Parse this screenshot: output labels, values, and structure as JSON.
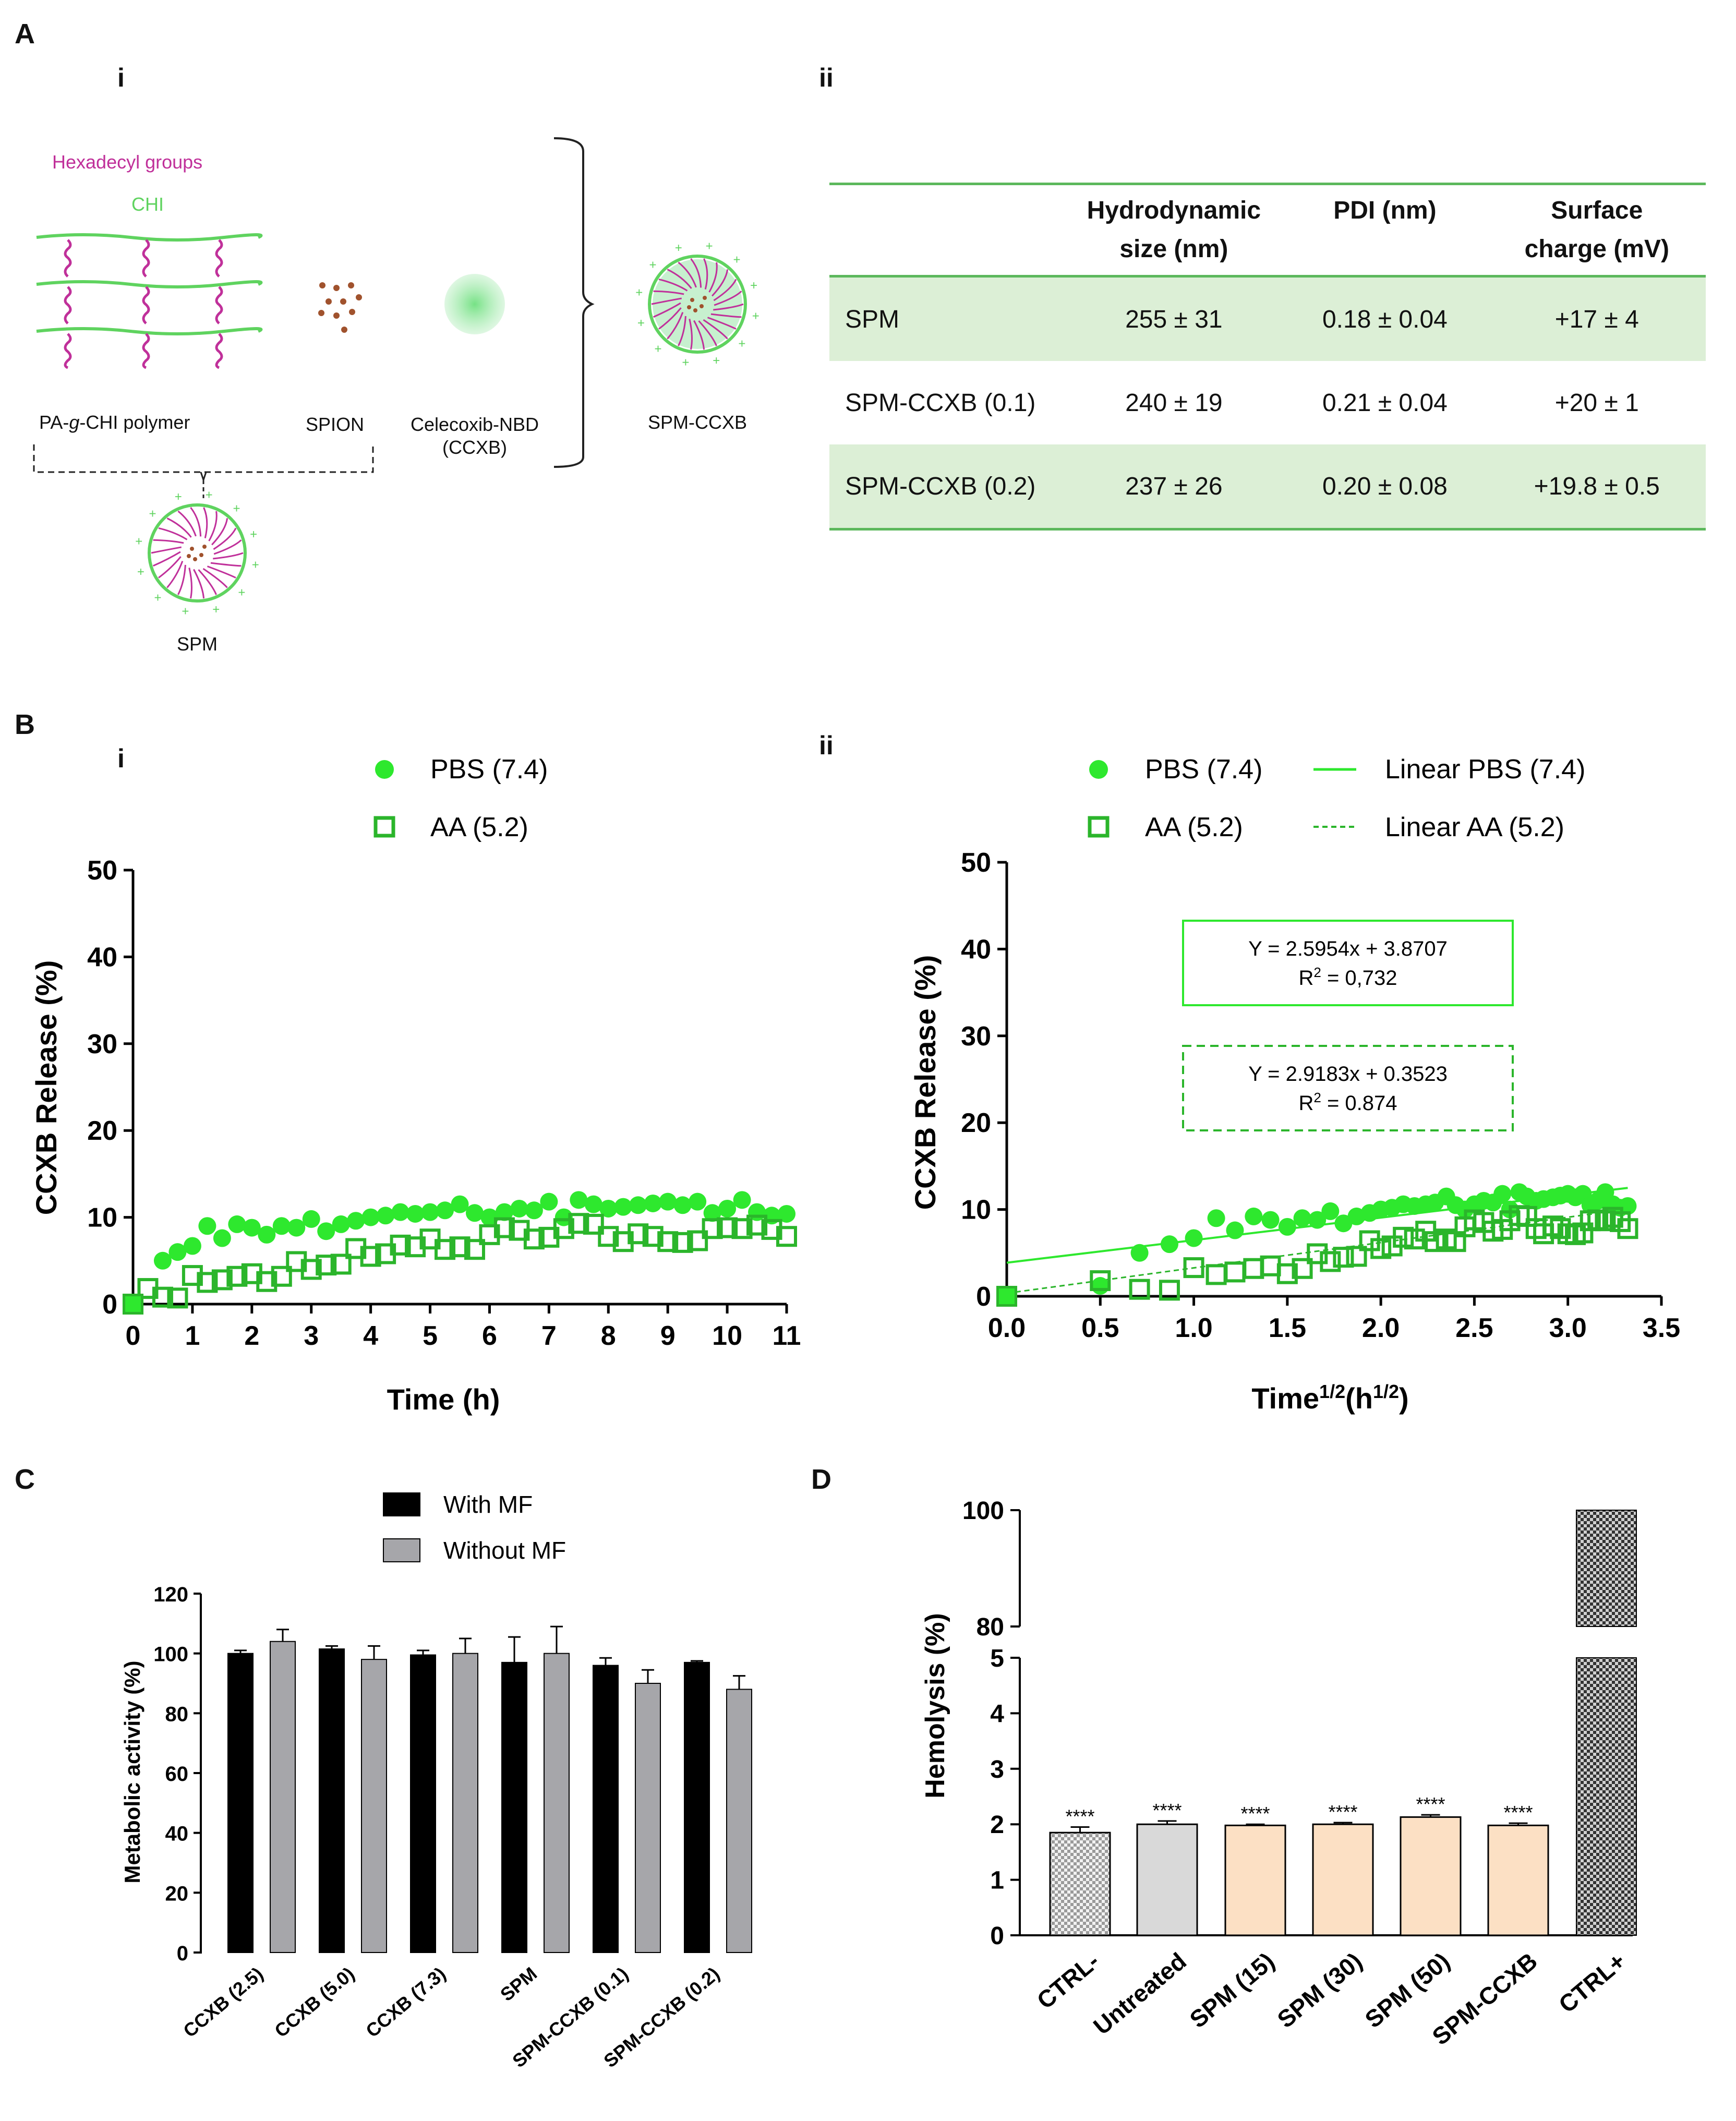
{
  "panels": {
    "A": "A",
    "B": "B",
    "C": "C",
    "D": "D"
  },
  "sub": {
    "i": "i",
    "ii": "ii"
  },
  "schematic": {
    "hexadecyl_label": "Hexadecyl groups",
    "chi_label": "CHI",
    "polymer_label_pre": "PA-",
    "polymer_label_g": "g",
    "polymer_label_post": "-CHI polymer",
    "spion_label": "SPION",
    "ccxb_label_line1": "Celecoxib-NBD",
    "ccxb_label_line2": "(CCXB)",
    "spm_ccxb_label": "SPM-CCXB",
    "spm_label": "SPM",
    "colors": {
      "chi": "#5fd35f",
      "hexadecyl": "#c0309a",
      "spion": "#a0522d",
      "drug": "#7fe08f"
    }
  },
  "table": {
    "headers": [
      "",
      "Hydrodynamic size (nm)",
      "PDI (nm)",
      "Surface charge (mV)"
    ],
    "header_lines": [
      [
        "",
        ""
      ],
      [
        "Hydrodynamic",
        "size (nm)"
      ],
      [
        "PDI (nm)",
        ""
      ],
      [
        "Surface",
        "charge (mV)"
      ]
    ],
    "rows": [
      [
        "SPM",
        "255 ± 31",
        "0.18 ± 0.04",
        "+17 ± 4"
      ],
      [
        "SPM-CCXB (0.1)",
        "240 ± 19",
        "0.21 ± 0.04",
        "+20 ± 1"
      ],
      [
        "SPM-CCXB (0.2)",
        "237 ± 26",
        "0.20 ± 0.08",
        "+19.8 ± 0.5"
      ]
    ],
    "colors": {
      "rule": "#5cb85c",
      "shade": "#dcefd6"
    }
  },
  "chart_data": [
    {
      "id": "Bi",
      "type": "scatter",
      "xlabel": "Time (h)",
      "ylabel": "CCXB Release (%)",
      "xlim": [
        0,
        11
      ],
      "ylim": [
        0,
        50
      ],
      "xticks": [
        0,
        1,
        2,
        3,
        4,
        5,
        6,
        7,
        8,
        9,
        10,
        11
      ],
      "yticks": [
        0,
        10,
        20,
        30,
        40,
        50
      ],
      "series": [
        {
          "name": "PBS (7.4)",
          "marker": "filled-circle",
          "color": "#2ee82e",
          "x": [
            0,
            0.5,
            0.75,
            1,
            1.25,
            1.5,
            1.75,
            2,
            2.25,
            2.5,
            2.75,
            3,
            3.25,
            3.5,
            3.75,
            4,
            4.25,
            4.5,
            4.75,
            5,
            5.25,
            5.5,
            5.75,
            6,
            6.25,
            6.5,
            6.75,
            7,
            7.25,
            7.5,
            7.75,
            8,
            8.25,
            8.5,
            8.75,
            9,
            9.25,
            9.5,
            9.75,
            10,
            10.25,
            10.5,
            10.75,
            11
          ],
          "y": [
            0,
            5,
            6,
            6.7,
            9,
            7.6,
            9.2,
            8.8,
            8,
            9,
            8.8,
            9.8,
            8.4,
            9.2,
            9.6,
            10,
            10.2,
            10.6,
            10.4,
            10.6,
            10.8,
            11.5,
            10.5,
            10,
            10.6,
            11,
            10.8,
            11.8,
            10,
            12,
            11.5,
            11,
            11.2,
            11.4,
            11.6,
            11.8,
            11.4,
            11.8,
            10.5,
            11,
            12,
            10.6,
            10.2,
            10.4
          ]
        },
        {
          "name": "AA (5.2)",
          "marker": "open-square",
          "color": "#2bb52b",
          "x": [
            0,
            0.25,
            0.5,
            0.75,
            1,
            1.25,
            1.5,
            1.75,
            2,
            2.25,
            2.5,
            2.75,
            3,
            3.25,
            3.5,
            3.75,
            4,
            4.25,
            4.5,
            4.75,
            5,
            5.25,
            5.5,
            5.75,
            6,
            6.25,
            6.5,
            6.75,
            7,
            7.25,
            7.5,
            7.75,
            8,
            8.25,
            8.5,
            8.75,
            9,
            9.25,
            9.5,
            9.75,
            10,
            10.25,
            10.5,
            10.75,
            11
          ],
          "y": [
            0,
            1.8,
            0.8,
            0.7,
            3.3,
            2.5,
            2.8,
            3.2,
            3.5,
            2.6,
            3.2,
            4.9,
            4,
            4.5,
            4.6,
            6.4,
            5.5,
            5.8,
            6.8,
            6.6,
            7.5,
            6.3,
            6.6,
            6.3,
            8,
            8.8,
            8.5,
            7.5,
            7.7,
            8.7,
            9.3,
            9.2,
            7.8,
            7.2,
            8.1,
            7.8,
            7.2,
            7.1,
            7.3,
            8.7,
            8.8,
            8.7,
            9.1,
            8.6,
            7.8
          ]
        }
      ]
    },
    {
      "id": "Bii",
      "type": "scatter",
      "xlabel_main": "Time",
      "xlabel_sup1": "1/2",
      "xlabel_mid": "(h",
      "xlabel_sup2": "1/2",
      "xlabel_end": ")",
      "ylabel": "CCXB Release (%)",
      "xlim": [
        0,
        3.5
      ],
      "ylim": [
        0,
        50
      ],
      "xticks": [
        "0.0",
        "0.5",
        "1.0",
        "1.5",
        "2.0",
        "2.5",
        "3.0",
        "3.5"
      ],
      "yticks": [
        0,
        10,
        20,
        30,
        40,
        50
      ],
      "series": [
        {
          "name": "PBS (7.4)",
          "marker": "filled-circle",
          "color": "#2ee82e",
          "fit_label": "Linear PBS (7.4)",
          "fit": {
            "slope": 2.5954,
            "intercept": 3.8707
          },
          "equation": "Y = 2.5954x + 3.8707",
          "r2_prefix": "R",
          "r2_exp": "2",
          "r2_value": " = 0,732",
          "x": [
            0,
            0.5,
            0.71,
            0.87,
            1,
            1.12,
            1.22,
            1.32,
            1.41,
            1.5,
            1.58,
            1.66,
            1.73,
            1.8,
            1.87,
            1.94,
            2,
            2.06,
            2.12,
            2.18,
            2.24,
            2.29,
            2.35,
            2.4,
            2.45,
            2.5,
            2.55,
            2.6,
            2.65,
            2.69,
            2.74,
            2.78,
            2.83,
            2.87,
            2.92,
            2.96,
            3,
            3.04,
            3.08,
            3.12,
            3.16,
            3.2,
            3.24,
            3.28,
            3.32
          ],
          "y": [
            0,
            1.2,
            5,
            6,
            6.7,
            9,
            7.6,
            9.2,
            8.8,
            8,
            9,
            8.8,
            9.8,
            8.4,
            9.2,
            9.6,
            10,
            10.2,
            10.6,
            10.4,
            10.6,
            10.8,
            11.5,
            10.5,
            10,
            10.6,
            11,
            10.8,
            11.8,
            10,
            12,
            11.5,
            11,
            11.2,
            11.4,
            11.6,
            11.8,
            11.4,
            11.8,
            10.5,
            11,
            12,
            10.6,
            10.2,
            10.4
          ]
        },
        {
          "name": "AA (5.2)",
          "marker": "open-square",
          "color": "#2bb52b",
          "fit_label": "Linear AA (5.2)",
          "fit": {
            "slope": 2.9183,
            "intercept": 0.3523
          },
          "equation": "Y = 2.9183x + 0.3523",
          "r2_prefix": "R",
          "r2_exp": "2",
          "r2_value": " = 0.874",
          "x": [
            0,
            0.5,
            0.71,
            0.87,
            1,
            1.12,
            1.22,
            1.32,
            1.41,
            1.5,
            1.58,
            1.66,
            1.73,
            1.8,
            1.87,
            1.94,
            2,
            2.06,
            2.12,
            2.18,
            2.24,
            2.29,
            2.35,
            2.4,
            2.45,
            2.5,
            2.55,
            2.6,
            2.65,
            2.69,
            2.74,
            2.78,
            2.83,
            2.87,
            2.92,
            2.96,
            3,
            3.04,
            3.08,
            3.12,
            3.16,
            3.2,
            3.24,
            3.28,
            3.32
          ],
          "y": [
            0,
            1.8,
            0.8,
            0.7,
            3.3,
            2.5,
            2.8,
            3.2,
            3.5,
            2.6,
            3.2,
            4.9,
            4,
            4.5,
            4.6,
            6.4,
            5.5,
            5.8,
            6.8,
            6.6,
            7.5,
            6.3,
            6.6,
            6.3,
            8,
            8.8,
            8.5,
            7.5,
            7.7,
            8.7,
            9.3,
            9.2,
            7.8,
            7.2,
            8.1,
            7.8,
            7.2,
            7.1,
            7.3,
            8.7,
            8.8,
            8.7,
            9.1,
            8.6,
            7.8
          ]
        }
      ]
    },
    {
      "id": "C",
      "type": "bar",
      "ylabel": "Metabolic activity (%)",
      "ylim": [
        0,
        120
      ],
      "yticks": [
        0,
        20,
        40,
        60,
        80,
        100,
        120
      ],
      "categories": [
        "CCXB (2.5)",
        "CCXB (5.0)",
        "CCXB (7.3)",
        "SPM",
        "SPM-CCXB (0.1)",
        "SPM-CCXB (0.2)"
      ],
      "series": [
        {
          "name": "With MF",
          "color": "#000000",
          "values": [
            100,
            101.5,
            99.5,
            97,
            96,
            97
          ],
          "errors": [
            1,
            1,
            1.5,
            8.5,
            2.5,
            0.5
          ]
        },
        {
          "name": "Without MF",
          "color": "#a6a6aa",
          "values": [
            104,
            98,
            100,
            100,
            90,
            88
          ],
          "errors": [
            4,
            4.5,
            5,
            9,
            4.5,
            4.5
          ]
        }
      ]
    },
    {
      "id": "D",
      "type": "bar",
      "ylabel": "Hemolysis (%)",
      "axis_break": {
        "lower": [
          0,
          5
        ],
        "upper": [
          80,
          100
        ]
      },
      "yticks_lower": [
        0,
        1,
        2,
        3,
        4,
        5
      ],
      "yticks_upper": [
        80,
        100
      ],
      "categories": [
        "CTRL-",
        "Untreated",
        "SPM (15)",
        "SPM (30)",
        "SPM (50)",
        "SPM-CCXB",
        "CTRL+"
      ],
      "values": [
        1.85,
        2.0,
        1.98,
        2.0,
        2.13,
        1.98,
        100
      ],
      "errors": [
        0.1,
        0.06,
        0.02,
        0.03,
        0.04,
        0.04,
        0
      ],
      "fills": [
        "checker-light",
        "#d9d9d9",
        "#fce0c4",
        "#fce0c4",
        "#fce0c4",
        "#fce0c4",
        "checker-dark"
      ],
      "significance": [
        "****",
        "****",
        "****",
        "****",
        "****",
        "****",
        ""
      ]
    }
  ]
}
